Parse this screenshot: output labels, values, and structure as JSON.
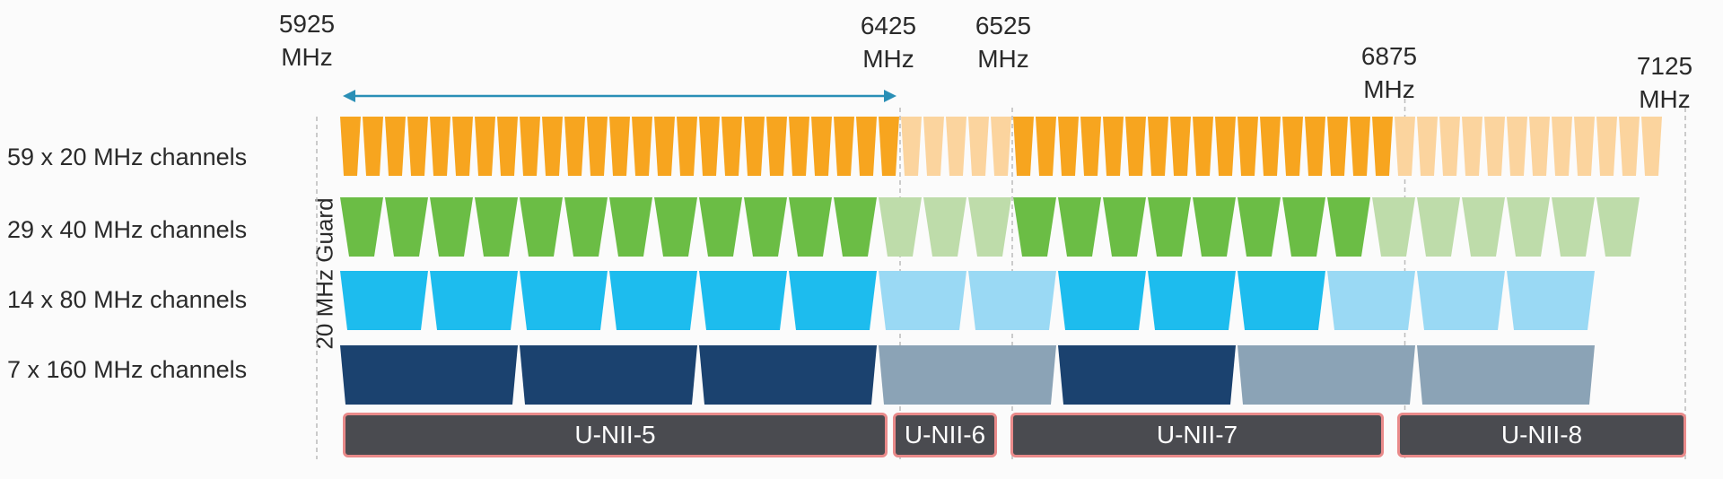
{
  "frequencies": [
    {
      "mhz": 5925,
      "value": "5925",
      "unit": "MHz"
    },
    {
      "mhz": 6425,
      "value": "6425",
      "unit": "MHz"
    },
    {
      "mhz": 6525,
      "value": "6525",
      "unit": "MHz"
    },
    {
      "mhz": 6875,
      "value": "6875",
      "unit": "MHz"
    },
    {
      "mhz": 7125,
      "value": "7125",
      "unit": "MHz"
    }
  ],
  "guard_label": "20 MHz Guard",
  "rows": [
    {
      "label": "59 x 20 MHz channels",
      "count": 59,
      "width_mhz": 20,
      "color": "#f7a51f",
      "faded_color": "#fbd49e",
      "bright_ranges": [
        [
          5925,
          6425
        ],
        [
          6525,
          6875
        ]
      ]
    },
    {
      "label": "29 x 40 MHz channels",
      "count": 29,
      "width_mhz": 40,
      "color": "#6bbd45",
      "faded_color": "#bedcaa",
      "bright_ranges": [
        [
          5925,
          6425
        ],
        [
          6525,
          6875
        ]
      ]
    },
    {
      "label": "14 x 80 MHz channels",
      "count": 14,
      "width_mhz": 80,
      "color": "#1dbcee",
      "faded_color": "#9ad9f4",
      "bright_ranges": [
        [
          5925,
          6425
        ],
        [
          6525,
          6875
        ]
      ]
    },
    {
      "label": "7 x 160 MHz channels",
      "count": 7,
      "width_mhz": 160,
      "color": "#1b426f",
      "faded_color": "#8ba3b6",
      "bright_ranges": [
        [
          5925,
          6425
        ],
        [
          6525,
          6875
        ]
      ]
    }
  ],
  "bands": [
    {
      "label": "U-NII-5",
      "start_mhz": 5925,
      "end_mhz": 6425
    },
    {
      "label": "U-NII-6",
      "start_mhz": 6425,
      "end_mhz": 6525
    },
    {
      "label": "U-NII-7",
      "start_mhz": 6525,
      "end_mhz": 6875
    },
    {
      "label": "U-NII-8",
      "start_mhz": 6875,
      "end_mhz": 7125
    }
  ],
  "colors": {
    "arrow": "#2a8fb6",
    "band_fill": "#4a4b50",
    "band_border": "#e98a8a",
    "divider": "#bbbbbb"
  }
}
